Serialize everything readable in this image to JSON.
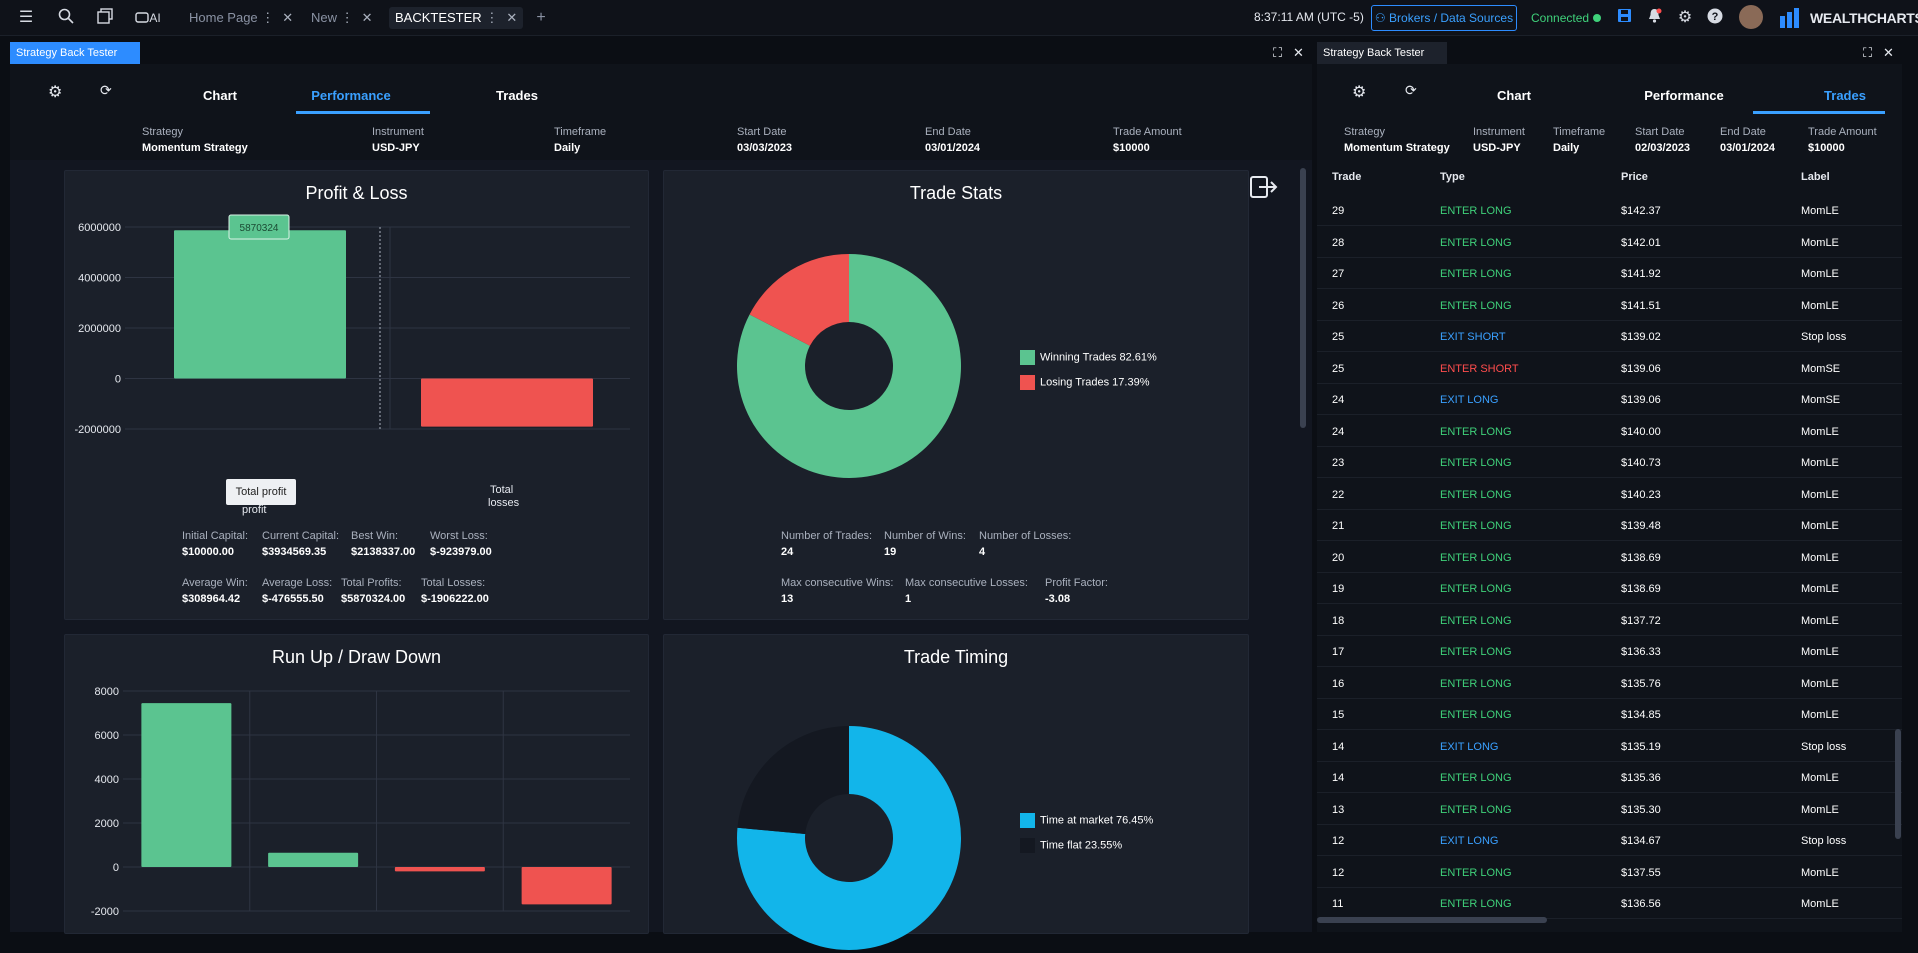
{
  "app": {
    "brand": "WEALTHCHARTS",
    "clock": "8:37:11 AM",
    "timezone": "(UTC -5)",
    "brokers_label": "Brokers / Data Sources",
    "status": "Connected",
    "ai_label": "AI"
  },
  "tabs": [
    {
      "label": "Home Page"
    },
    {
      "label": "New"
    },
    {
      "label": "BACKTESTER"
    }
  ],
  "left_panel": {
    "title": "Strategy Back Tester",
    "subtabs": [
      "Chart",
      "Performance",
      "Trades"
    ],
    "active_subtab": "Performance",
    "meta": [
      {
        "label": "Strategy",
        "value": "Momentum Strategy"
      },
      {
        "label": "Instrument",
        "value": "USD-JPY"
      },
      {
        "label": "Timeframe",
        "value": "Daily"
      },
      {
        "label": "Start Date",
        "value": "03/03/2023"
      },
      {
        "label": "End Date",
        "value": "03/01/2024"
      },
      {
        "label": "Trade Amount",
        "value": "$10000"
      }
    ],
    "pnl": {
      "title": "Profit & Loss",
      "tooltip_value": "5870324",
      "tooltip_label": "Total profit",
      "cat_labels": [
        "profit",
        "Total",
        "losses"
      ],
      "stats": [
        {
          "label": "Initial Capital:",
          "value": "$10000.00"
        },
        {
          "label": "Current Capital:",
          "value": "$3934569.35"
        },
        {
          "label": "Best Win:",
          "value": "$2138337.00"
        },
        {
          "label": "Worst Loss:",
          "value": "$-923979.00"
        },
        {
          "label": "Average Win:",
          "value": "$308964.42"
        },
        {
          "label": "Average Loss:",
          "value": "$-476555.50"
        },
        {
          "label": "Total Profits:",
          "value": "$5870324.00"
        },
        {
          "label": "Total Losses:",
          "value": "$-1906222.00"
        }
      ]
    },
    "trade_stats": {
      "title": "Trade Stats",
      "legend": [
        {
          "label": "Winning Trades",
          "pct": "82.61%"
        },
        {
          "label": "Losing Trades",
          "pct": "17.39%"
        }
      ],
      "stats": [
        {
          "label": "Number of Trades:",
          "value": "24"
        },
        {
          "label": "Number of Wins:",
          "value": "19"
        },
        {
          "label": "Number of Losses:",
          "value": "4"
        },
        {
          "label": "Max consecutive Wins:",
          "value": "13"
        },
        {
          "label": "Max consecutive Losses:",
          "value": "1"
        },
        {
          "label": "Profit Factor:",
          "value": "-3.08"
        }
      ]
    },
    "runup": {
      "title": "Run Up / Draw Down"
    },
    "timing": {
      "title": "Trade Timing",
      "legend": [
        {
          "label": "Time at market",
          "pct": "76.45%"
        },
        {
          "label": "Time flat",
          "pct": "23.55%"
        }
      ]
    }
  },
  "right_panel": {
    "title": "Strategy Back Tester",
    "subtabs": [
      "Chart",
      "Performance",
      "Trades"
    ],
    "active_subtab": "Trades",
    "meta": [
      {
        "label": "Strategy",
        "value": "Momentum Strategy"
      },
      {
        "label": "Instrument",
        "value": "USD-JPY"
      },
      {
        "label": "Timeframe",
        "value": "Daily"
      },
      {
        "label": "Start Date",
        "value": "02/03/2023"
      },
      {
        "label": "End Date",
        "value": "03/01/2024"
      },
      {
        "label": "Trade Amount",
        "value": "$10000"
      }
    ],
    "columns": [
      "Trade",
      "Type",
      "Price",
      "Label"
    ],
    "rows": [
      {
        "trade": "29",
        "type": "ENTER LONG",
        "price": "$142.37",
        "label": "MomLE",
        "color": "#3fd17a"
      },
      {
        "trade": "28",
        "type": "ENTER LONG",
        "price": "$142.01",
        "label": "MomLE",
        "color": "#3fd17a"
      },
      {
        "trade": "27",
        "type": "ENTER LONG",
        "price": "$141.92",
        "label": "MomLE",
        "color": "#3fd17a"
      },
      {
        "trade": "26",
        "type": "ENTER LONG",
        "price": "$141.51",
        "label": "MomLE",
        "color": "#3fd17a"
      },
      {
        "trade": "25",
        "type": "EXIT SHORT",
        "price": "$139.02",
        "label": "Stop loss",
        "color": "#3aa0ff"
      },
      {
        "trade": "25",
        "type": "ENTER SHORT",
        "price": "$139.06",
        "label": "MomSE",
        "color": "#ff4d4d"
      },
      {
        "trade": "24",
        "type": "EXIT LONG",
        "price": "$139.06",
        "label": "MomSE",
        "color": "#3aa0ff"
      },
      {
        "trade": "24",
        "type": "ENTER LONG",
        "price": "$140.00",
        "label": "MomLE",
        "color": "#3fd17a"
      },
      {
        "trade": "23",
        "type": "ENTER LONG",
        "price": "$140.73",
        "label": "MomLE",
        "color": "#3fd17a"
      },
      {
        "trade": "22",
        "type": "ENTER LONG",
        "price": "$140.23",
        "label": "MomLE",
        "color": "#3fd17a"
      },
      {
        "trade": "21",
        "type": "ENTER LONG",
        "price": "$139.48",
        "label": "MomLE",
        "color": "#3fd17a"
      },
      {
        "trade": "20",
        "type": "ENTER LONG",
        "price": "$138.69",
        "label": "MomLE",
        "color": "#3fd17a"
      },
      {
        "trade": "19",
        "type": "ENTER LONG",
        "price": "$138.69",
        "label": "MomLE",
        "color": "#3fd17a"
      },
      {
        "trade": "18",
        "type": "ENTER LONG",
        "price": "$137.72",
        "label": "MomLE",
        "color": "#3fd17a"
      },
      {
        "trade": "17",
        "type": "ENTER LONG",
        "price": "$136.33",
        "label": "MomLE",
        "color": "#3fd17a"
      },
      {
        "trade": "16",
        "type": "ENTER LONG",
        "price": "$135.76",
        "label": "MomLE",
        "color": "#3fd17a"
      },
      {
        "trade": "15",
        "type": "ENTER LONG",
        "price": "$134.85",
        "label": "MomLE",
        "color": "#3fd17a"
      },
      {
        "trade": "14",
        "type": "EXIT LONG",
        "price": "$135.19",
        "label": "Stop loss",
        "color": "#3aa0ff"
      },
      {
        "trade": "14",
        "type": "ENTER LONG",
        "price": "$135.36",
        "label": "MomLE",
        "color": "#3fd17a"
      },
      {
        "trade": "13",
        "type": "ENTER LONG",
        "price": "$135.30",
        "label": "MomLE",
        "color": "#3fd17a"
      },
      {
        "trade": "12",
        "type": "EXIT LONG",
        "price": "$134.67",
        "label": "Stop loss",
        "color": "#3aa0ff"
      },
      {
        "trade": "12",
        "type": "ENTER LONG",
        "price": "$137.55",
        "label": "MomLE",
        "color": "#3fd17a"
      },
      {
        "trade": "11",
        "type": "ENTER LONG",
        "price": "$136.56",
        "label": "MomLE",
        "color": "#3fd17a"
      }
    ]
  },
  "chart_data": [
    {
      "type": "bar",
      "title": "Profit & Loss",
      "categories": [
        "Total profit",
        "Total losses"
      ],
      "values": [
        5870324,
        -1906222
      ],
      "ylim": [
        -2000000,
        6000000
      ],
      "yticks": [
        "6000000",
        "4000000",
        "2000000",
        "0",
        "-2000000"
      ],
      "colors": [
        "#5bc490",
        "#ef5350"
      ]
    },
    {
      "type": "pie",
      "title": "Trade Stats",
      "categories": [
        "Winning Trades",
        "Losing Trades"
      ],
      "values": [
        82.61,
        17.39
      ],
      "colors": [
        "#5bc490",
        "#ef5350"
      ]
    },
    {
      "type": "bar",
      "title": "Run Up / Draw Down",
      "values": [
        7450,
        650,
        -200,
        -1700
      ],
      "ylim": [
        -2000,
        8000
      ],
      "yticks": [
        "8000",
        "6000",
        "4000",
        "2000",
        "0",
        "-2000"
      ],
      "colors": [
        "#5bc490",
        "#5bc490",
        "#ef5350",
        "#ef5350"
      ]
    },
    {
      "type": "pie",
      "title": "Trade Timing",
      "categories": [
        "Time at market",
        "Time flat"
      ],
      "values": [
        76.45,
        23.55
      ],
      "colors": [
        "#12b5ea",
        "#141821"
      ]
    }
  ]
}
